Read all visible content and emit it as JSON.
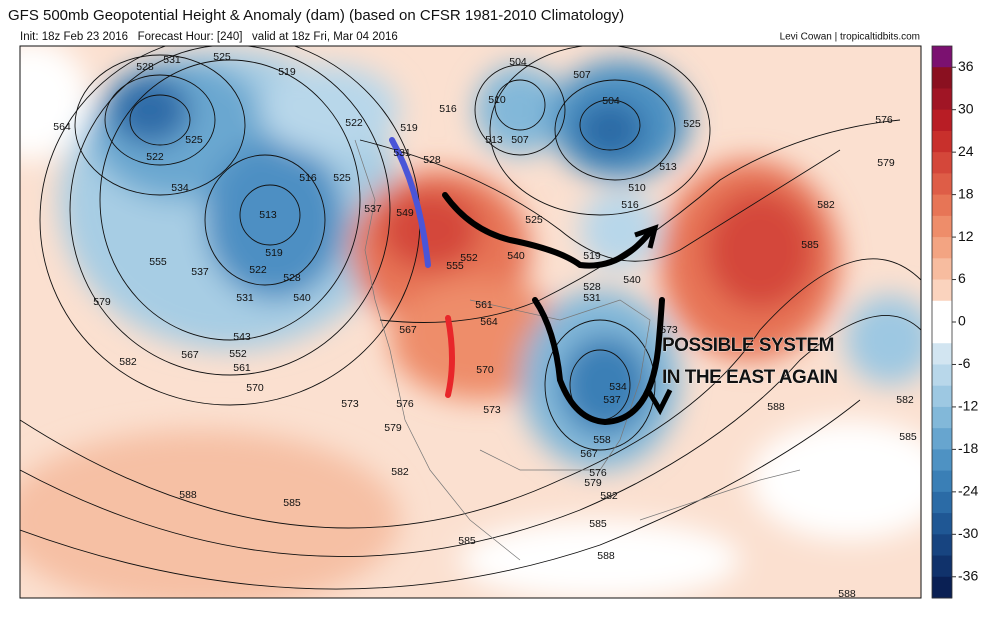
{
  "header": {
    "title": "GFS 500mb Geopotential Height & Anomaly (dam) (based on CFSR 1981-2010 Climatology)",
    "init_line": "Init: 18z Feb 23 2016   Forecast Hour: [240]   valid at 18z Fri, Mar 04 2016",
    "credit": "Levi Cowan | tropicaltidbits.com"
  },
  "annotation": {
    "lines": [
      "POSSIBLE SYSTEM",
      "IN THE EAST AGAIN"
    ]
  },
  "colorbar": {
    "range": [
      -39,
      39
    ],
    "ticks": [
      36,
      30,
      24,
      18,
      12,
      6,
      0,
      -6,
      -12,
      -18,
      -24,
      -30,
      -36
    ],
    "colors": [
      "#7b1170",
      "#8a1020",
      "#a01525",
      "#b81d25",
      "#c8302c",
      "#d4473a",
      "#de5d47",
      "#e77556",
      "#ee8d6a",
      "#f3a482",
      "#f7bc9f",
      "#fad3be",
      "#ffffff",
      "#ffffff",
      "#d2e5f1",
      "#b8d7ea",
      "#9dc8e2",
      "#82b8d9",
      "#67a5cf",
      "#4e92c3",
      "#3a7fb6",
      "#2b6ba6",
      "#1f5794",
      "#174480",
      "#10326b",
      "#0a2054"
    ]
  },
  "contour_labels": [
    531,
    528,
    525,
    519,
    564,
    522,
    525,
    534,
    522,
    519,
    516,
    525,
    513,
    555,
    537,
    519,
    522,
    528,
    540,
    531,
    579,
    543,
    552,
    567,
    561,
    570,
    582,
    573,
    576,
    579,
    582,
    588,
    585,
    504,
    507,
    510,
    516,
    513,
    507,
    504,
    525,
    576,
    579,
    510,
    516,
    513,
    525,
    540,
    519,
    528,
    531,
    540,
    552,
    555,
    561,
    564,
    567,
    570,
    573,
    582,
    585,
    573,
    588,
    582,
    585,
    576,
    579,
    582,
    585,
    588,
    588,
    585,
    549,
    537,
    531,
    528,
    558,
    534,
    537,
    567
  ]
}
